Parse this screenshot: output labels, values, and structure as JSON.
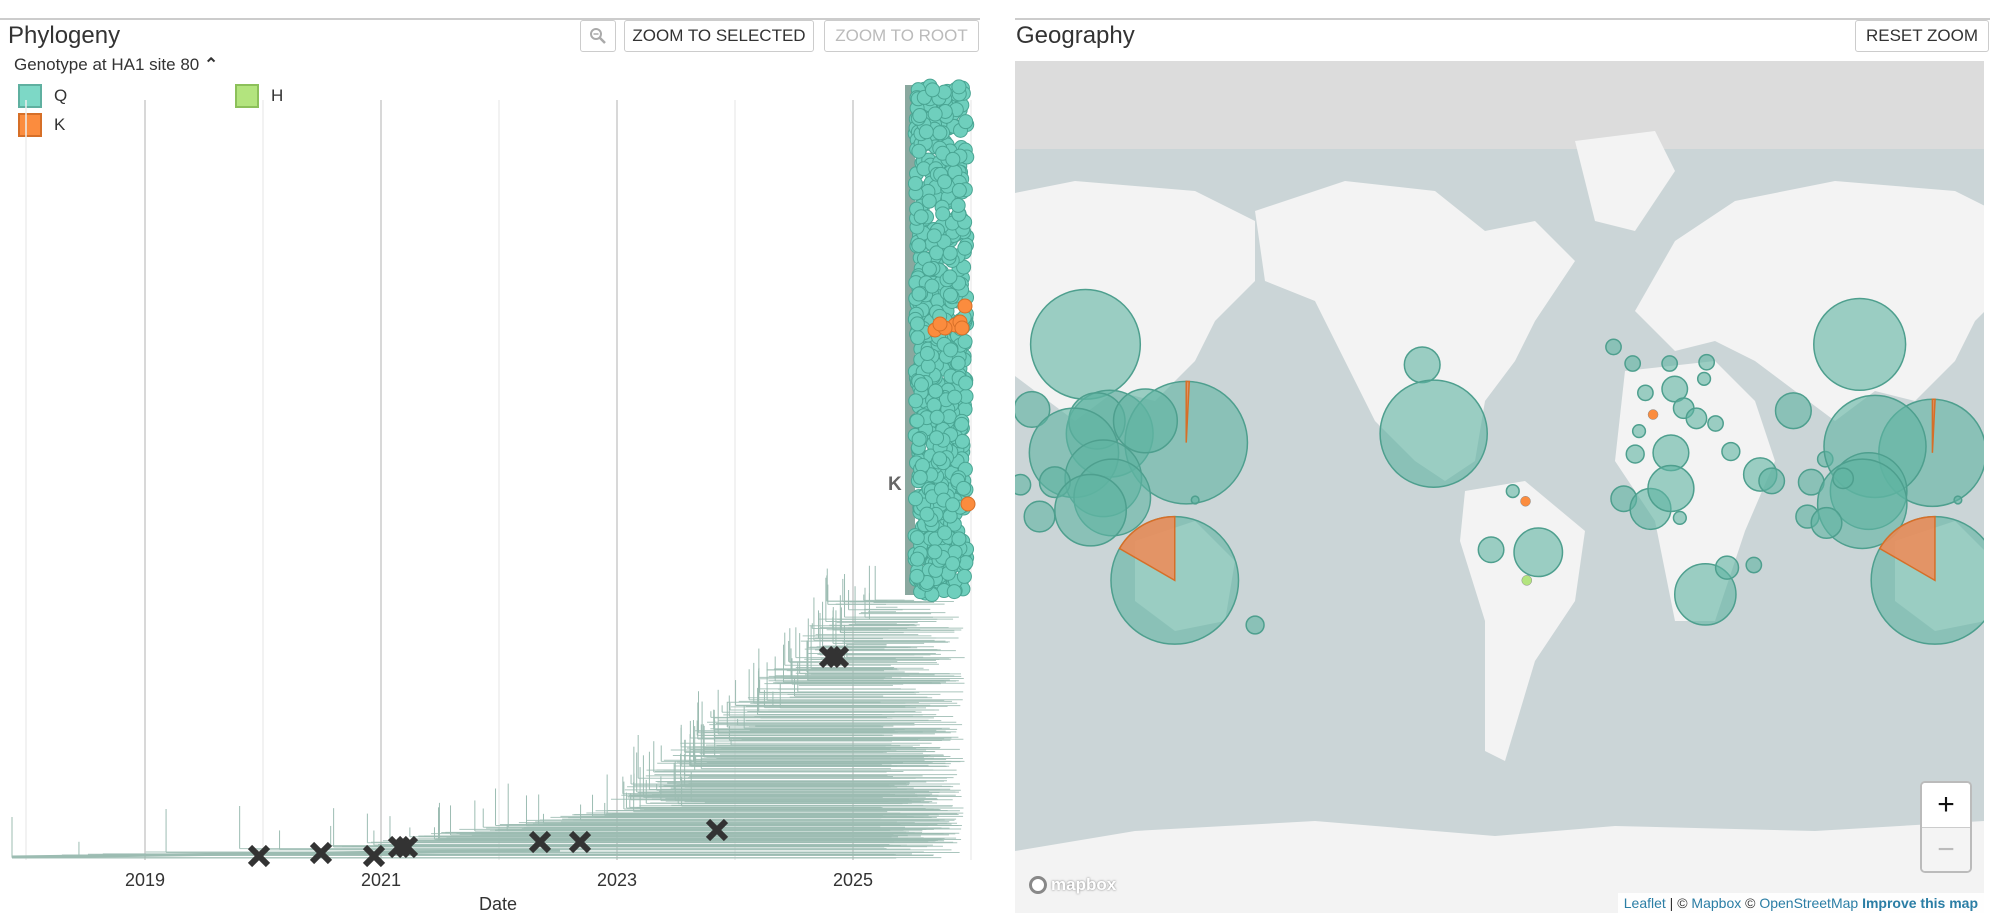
{
  "phylogeny": {
    "title": "Phylogeny",
    "zoom_out_icon": "zoom-out-icon",
    "zoom_to_selected": "ZOOM TO SELECTED",
    "zoom_to_root": "ZOOM TO ROOT",
    "color_by": "Genotype at HA1 site 80",
    "color_by_toggle_icon": "chevron-up-icon",
    "legend": [
      {
        "label": "Q",
        "color": "#7dd8c6",
        "border": "#5fb0a0"
      },
      {
        "label": "K",
        "color": "#fb8c3e",
        "border": "#d66f28"
      },
      {
        "label": "H",
        "color": "#b3e47e",
        "border": "#8cc05a"
      }
    ],
    "branch_label": "K",
    "x_axis": {
      "label": "Date",
      "ticks": [
        "2019",
        "2021",
        "2023",
        "2025"
      ]
    },
    "colors": {
      "branch": "#9cbcb2",
      "tip": "#6fcfbd",
      "tip_stroke": "#4aa593",
      "mutation_marker": "#333333"
    }
  },
  "geography": {
    "title": "Geography",
    "reset_zoom": "RESET ZOOM",
    "zoom_in": "+",
    "zoom_out": "−",
    "logo": "mapbox",
    "attribution": {
      "leaflet": "Leaflet",
      "sep": " | © ",
      "mapbox": "Mapbox",
      "c2": " © ",
      "osm": "OpenStreetMap",
      "improve": "Improve this map"
    },
    "colors": {
      "ocean": "#cbd5d7",
      "land": "#f3f3f3",
      "circle": "#5fb4a2",
      "wedge": "#f08a56"
    }
  }
}
